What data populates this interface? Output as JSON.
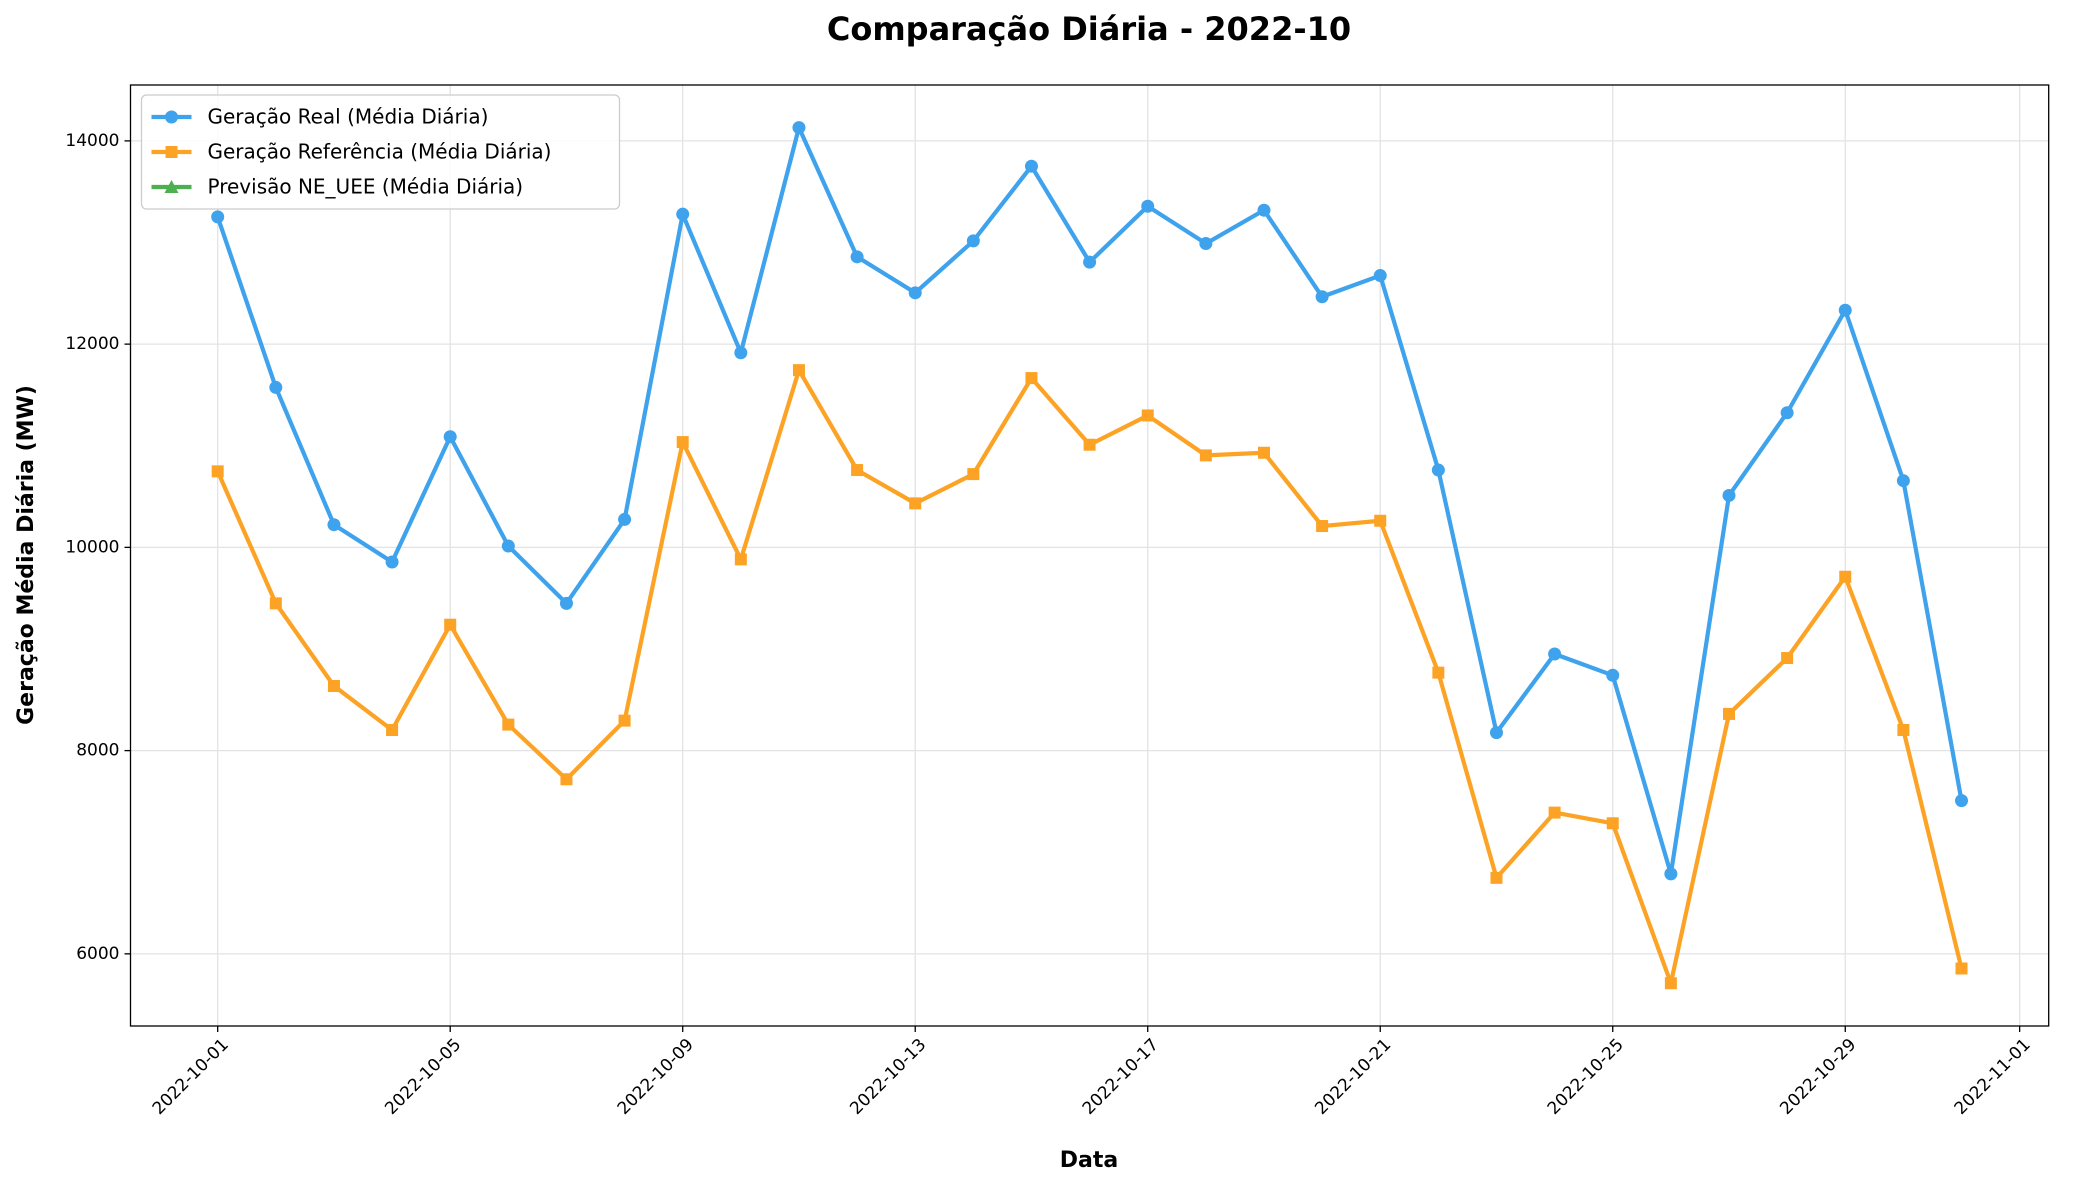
{
  "chart_data": {
    "type": "line",
    "title": "Comparação Diária - 2022-10",
    "xlabel": "Data",
    "ylabel": "Geração Média Diária (MW)",
    "x": [
      "2022-10-01",
      "2022-10-02",
      "2022-10-03",
      "2022-10-04",
      "2022-10-05",
      "2022-10-06",
      "2022-10-07",
      "2022-10-08",
      "2022-10-09",
      "2022-10-10",
      "2022-10-11",
      "2022-10-12",
      "2022-10-13",
      "2022-10-14",
      "2022-10-15",
      "2022-10-16",
      "2022-10-17",
      "2022-10-18",
      "2022-10-19",
      "2022-10-20",
      "2022-10-21",
      "2022-10-22",
      "2022-10-23",
      "2022-10-24",
      "2022-10-25",
      "2022-10-26",
      "2022-10-27",
      "2022-10-28",
      "2022-10-29",
      "2022-10-30",
      "2022-10-31"
    ],
    "series": [
      {
        "name": "Geração Real (Média Diária)",
        "color": "#3ea2ec",
        "marker": "circle",
        "values": [
          13252,
          11574,
          10223,
          9856,
          11089,
          10013,
          9449,
          10275,
          13279,
          11915,
          14131,
          12859,
          12505,
          13016,
          13751,
          12807,
          13357,
          12990,
          13318,
          12466,
          12675,
          10761,
          8177,
          8951,
          8741,
          6787,
          10511,
          11325,
          12334,
          10656,
          7508
        ]
      },
      {
        "name": "Geração Referência (Média Diária)",
        "color": "#fca325",
        "marker": "square",
        "values": [
          10748,
          9449,
          8636,
          8203,
          9239,
          8256,
          7718,
          8295,
          11036,
          9882,
          11744,
          10761,
          10433,
          10721,
          11666,
          11010,
          11298,
          10905,
          10931,
          10210,
          10262,
          8767,
          6748,
          7390,
          7285,
          5711,
          8361,
          8911,
          9711,
          8203,
          5856
        ]
      },
      {
        "name": "Previsão NE_UEE (Média Diária)",
        "color": "#4cb050",
        "marker": "triangle",
        "values": [
          null,
          null,
          null,
          null,
          null,
          null,
          null,
          null,
          null,
          null,
          null,
          null,
          null,
          null,
          null,
          null,
          null,
          null,
          null,
          null,
          null,
          null,
          null,
          null,
          null,
          null,
          null,
          null,
          null,
          null,
          null
        ]
      }
    ],
    "xlim": [
      "2022-09-29T12:00:00Z",
      "2022-11-01T12:00:00Z"
    ],
    "xticks": [
      "2022-10-01",
      "2022-10-05",
      "2022-10-09",
      "2022-10-13",
      "2022-10-17",
      "2022-10-21",
      "2022-10-25",
      "2022-10-29",
      "2022-11-01"
    ],
    "ylim": [
      5290,
      14550
    ],
    "yticks": [
      6000,
      8000,
      10000,
      12000,
      14000
    ],
    "grid": true,
    "legend": "upper left"
  }
}
